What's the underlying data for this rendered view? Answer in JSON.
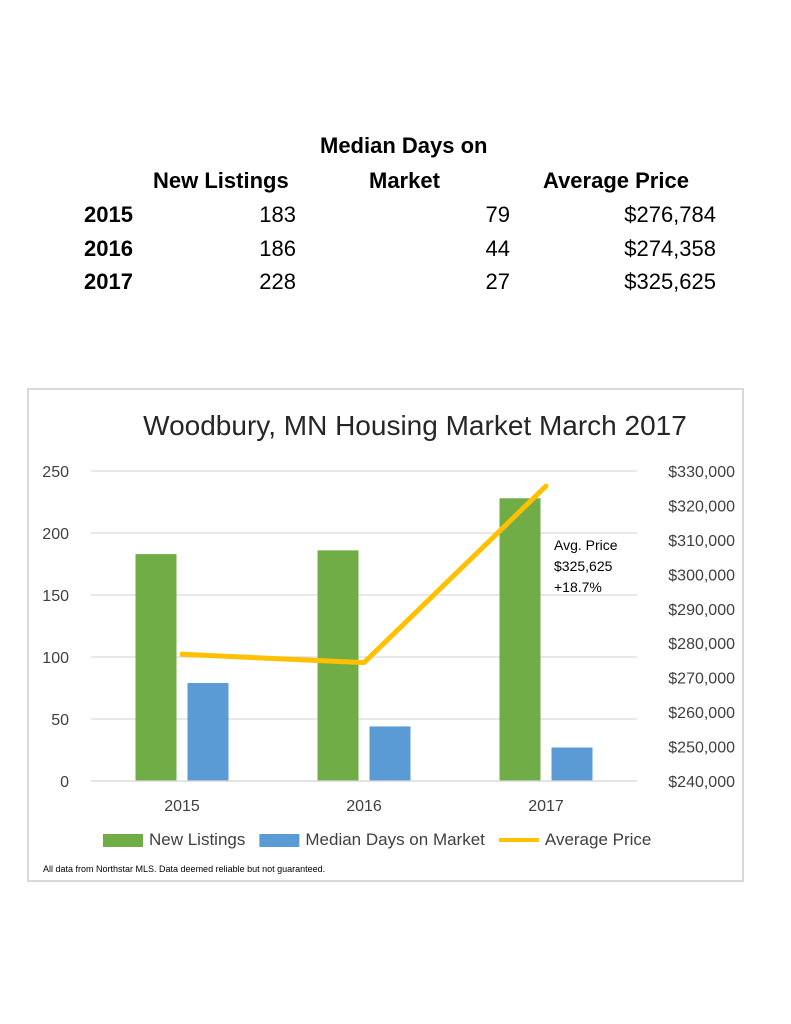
{
  "summary": {
    "headers": {
      "new_listings": "New Listings",
      "median_days_line1": "Median Days on",
      "median_days_line2": "Market",
      "average_price": "Average Price"
    },
    "rows": [
      {
        "year": "2015",
        "new_listings": "183",
        "median_days": "79",
        "average_price": "$276,784"
      },
      {
        "year": "2016",
        "new_listings": "186",
        "median_days": "44",
        "average_price": "$274,358"
      },
      {
        "year": "2017",
        "new_listings": "228",
        "median_days": "27",
        "average_price": "$325,625"
      }
    ]
  },
  "chart_data": {
    "type": "bar",
    "title": "Woodbury, MN Housing Market March 2017",
    "categories": [
      "2015",
      "2016",
      "2017"
    ],
    "series": [
      {
        "name": "New Listings",
        "type": "bar",
        "axis": "left",
        "color": "#70ad47",
        "values": [
          183,
          186,
          228
        ]
      },
      {
        "name": "Median Days on Market",
        "type": "bar",
        "axis": "left",
        "color": "#5b9bd5",
        "values": [
          79,
          44,
          27
        ]
      },
      {
        "name": "Average Price",
        "type": "line",
        "axis": "right",
        "color": "#ffc000",
        "values": [
          276784,
          274358,
          325625
        ]
      }
    ],
    "left_axis": {
      "ylim": [
        0,
        250
      ],
      "ticks": [
        0,
        50,
        100,
        150,
        200,
        250
      ],
      "tick_labels": [
        "0",
        "50",
        "100",
        "150",
        "200",
        "250"
      ]
    },
    "right_axis": {
      "ylim": [
        240000,
        330000
      ],
      "ticks": [
        240000,
        250000,
        260000,
        270000,
        280000,
        290000,
        300000,
        310000,
        320000,
        330000
      ],
      "tick_labels": [
        "$240,000",
        "$250,000",
        "$260,000",
        "$270,000",
        "$280,000",
        "$290,000",
        "$300,000",
        "$310,000",
        "$320,000",
        "$330,000"
      ]
    },
    "grid": true,
    "legend_position": "bottom",
    "annotation": {
      "lines": [
        "Avg. Price",
        "$325,625",
        "+18.7%"
      ]
    },
    "footnote": "All data from Northstar MLS. Data deemed reliable but not guaranteed."
  }
}
